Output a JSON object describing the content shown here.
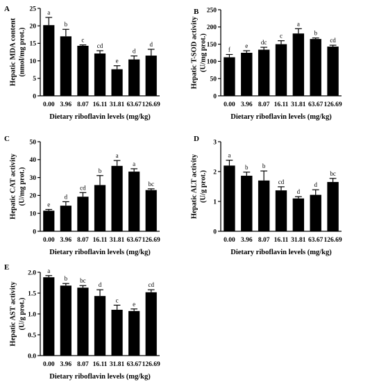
{
  "figure_title": "",
  "chart_data": [
    {
      "type": "bar",
      "panel": "A",
      "title": "",
      "xlabel": "Dietary riboflavin levels (mg/kg)",
      "ylabel": "Hepatic MDA content",
      "yunit": "(nmol/mg prot.)",
      "ylim": [
        0,
        25
      ],
      "yticks": [
        0,
        5,
        10,
        15,
        20,
        25
      ],
      "categories": [
        "0.00",
        "3.96",
        "8.07",
        "16.11",
        "31.81",
        "63.67",
        "126.69"
      ],
      "values": [
        20.2,
        17.0,
        14.3,
        12.1,
        7.6,
        10.4,
        11.5
      ],
      "errors": [
        2.2,
        2.0,
        0.25,
        0.8,
        1.0,
        1.0,
        1.8
      ],
      "labels": [
        "a",
        "b",
        "c",
        "cd",
        "e",
        "d",
        "d"
      ],
      "grid": false
    },
    {
      "type": "bar",
      "panel": "B",
      "title": "",
      "xlabel": "Dietary riboflavin levels (mg/kg)",
      "ylabel": "Hepatic T-SOD activity",
      "yunit": "(U/mg prot.)",
      "ylim": [
        0,
        250
      ],
      "yticks": [
        0,
        50,
        100,
        150,
        200,
        250
      ],
      "categories": [
        "0.00",
        "3.96",
        "8.07",
        "16.11",
        "31.81",
        "63.67",
        "126.69"
      ],
      "values": [
        112,
        125,
        134,
        150,
        181,
        165,
        143
      ],
      "errors": [
        8,
        6,
        7,
        10,
        14,
        3,
        4
      ],
      "labels": [
        "f",
        "e",
        "dc",
        "c",
        "a",
        "b",
        "cd"
      ],
      "grid": false
    },
    {
      "type": "bar",
      "panel": "C",
      "title": "",
      "xlabel": "Dietary riboflavin levels (mg/kg)",
      "ylabel": "Hepatic CAT activity",
      "yunit": "(U/mg prot.)",
      "ylim": [
        0,
        50
      ],
      "yticks": [
        0,
        10,
        20,
        30,
        40,
        50
      ],
      "categories": [
        "0.00",
        "3.96",
        "8.07",
        "16.11",
        "31.81",
        "63.67",
        "126.69"
      ],
      "values": [
        11.5,
        14.3,
        19.3,
        25.8,
        36.5,
        33.3,
        23.0
      ],
      "errors": [
        0.7,
        2.2,
        2.3,
        5.3,
        3.0,
        1.6,
        0.7
      ],
      "labels": [
        "e",
        "d",
        "cd",
        "b",
        "a",
        "a",
        "bc"
      ],
      "grid": false
    },
    {
      "type": "bar",
      "panel": "D",
      "title": "",
      "xlabel": "Dietary riboflavin levels (mg/kg)",
      "ylabel": "Hepatic ALT activity",
      "yunit": "(U/g prot.)",
      "ylim": [
        0,
        3
      ],
      "yticks": [
        0,
        1,
        2,
        3
      ],
      "categories": [
        "0.00",
        "3.96",
        "8.07",
        "16.11",
        "31.81",
        "63.67",
        "126.69"
      ],
      "values": [
        2.2,
        1.86,
        1.7,
        1.37,
        1.1,
        1.22,
        1.65
      ],
      "errors": [
        0.18,
        0.12,
        0.32,
        0.12,
        0.06,
        0.17,
        0.12
      ],
      "labels": [
        "a",
        "b",
        "b",
        "cd",
        "d",
        "d",
        "bc"
      ],
      "grid": false
    },
    {
      "type": "bar",
      "panel": "E",
      "title": "",
      "xlabel": "Dietary riboflavin levels (mg/kg)",
      "ylabel": "Hepatic AST activity",
      "yunit": "(U/g prot.)",
      "ylim": [
        0,
        2.0
      ],
      "yticks": [
        0.0,
        0.5,
        1.0,
        1.5,
        2.0
      ],
      "categories": [
        "0.00",
        "3.96",
        "8.07",
        "16.11",
        "31.81",
        "63.67",
        "126.69"
      ],
      "values": [
        1.88,
        1.68,
        1.63,
        1.43,
        1.1,
        1.07,
        1.52
      ],
      "errors": [
        0.04,
        0.05,
        0.05,
        0.15,
        0.11,
        0.05,
        0.06
      ],
      "labels": [
        "a",
        "b",
        "bc",
        "d",
        "c",
        "e",
        "cd"
      ],
      "grid": false
    }
  ]
}
